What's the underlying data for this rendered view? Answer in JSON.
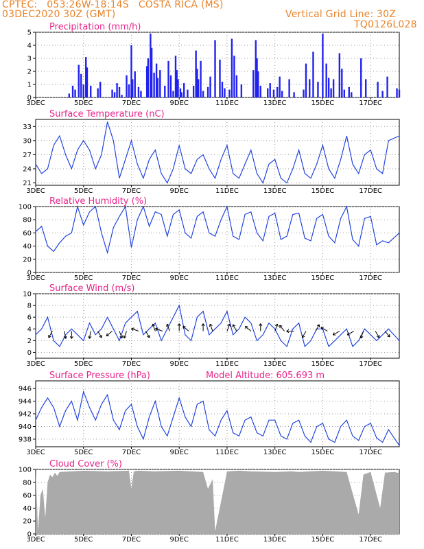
{
  "header": {
    "line1": "CPTEC:   053:26W-18:14S   COSTA RICA (MS)",
    "line2": "03DEC2020 30Z (GMT)",
    "grid_note": "Vertical Grid Line: 30Z",
    "run_code": "TQ0126L028"
  },
  "x_axis": {
    "tick_labels": [
      "3DEC",
      "5DEC",
      "7DEC",
      "9DEC",
      "11DEC",
      "13DEC",
      "15DEC",
      "17DEC"
    ],
    "tick_days": [
      0,
      2,
      4,
      6,
      8,
      10,
      12,
      14
    ]
  },
  "chart_data": [
    {
      "type": "bar",
      "title": "Precipitation (mm/h)",
      "ylim": [
        0,
        5
      ],
      "yticks": [
        0,
        1,
        2,
        3,
        4,
        5
      ],
      "color": "#2222ee",
      "x_days": [
        1.4,
        1.55,
        1.65,
        1.8,
        1.9,
        2.0,
        2.1,
        2.15,
        2.3,
        2.6,
        2.7,
        3.2,
        3.3,
        3.4,
        3.5,
        3.6,
        3.8,
        3.9,
        4.0,
        4.05,
        4.15,
        4.3,
        4.4,
        4.65,
        4.7,
        4.8,
        4.85,
        4.95,
        5.05,
        5.1,
        5.2,
        5.4,
        5.55,
        5.65,
        5.75,
        5.85,
        5.9,
        5.95,
        6.05,
        6.1,
        6.2,
        6.35,
        6.6,
        6.7,
        6.75,
        6.8,
        6.9,
        7.0,
        7.2,
        7.3,
        7.5,
        7.7,
        7.8,
        7.9,
        8.1,
        8.2,
        8.3,
        8.4,
        8.6,
        9.1,
        9.2,
        9.25,
        9.3,
        9.4,
        9.7,
        9.8,
        9.95,
        10.1,
        10.2,
        10.3,
        10.6,
        10.8,
        11.2,
        11.3,
        11.45,
        11.6,
        11.8,
        12.0,
        12.15,
        12.25,
        12.35,
        12.45,
        12.7,
        12.8,
        12.9,
        13.1,
        13.2,
        13.6,
        13.8,
        14.3,
        14.5,
        14.7,
        15.1,
        15.2
      ],
      "values": [
        0.3,
        0.9,
        0.6,
        2.5,
        1.8,
        1.0,
        3.1,
        2.3,
        0.9,
        0.7,
        1.2,
        0.6,
        0.4,
        1.1,
        0.8,
        0.2,
        1.7,
        1.0,
        4.0,
        1.4,
        2.0,
        0.8,
        0.5,
        2.4,
        3.0,
        4.9,
        3.8,
        1.9,
        2.6,
        1.5,
        2.1,
        0.9,
        2.8,
        1.7,
        0.5,
        3.2,
        2.1,
        1.4,
        0.7,
        0.4,
        1.1,
        0.6,
        0.9,
        3.6,
        2.2,
        1.4,
        2.8,
        0.5,
        0.8,
        1.6,
        4.4,
        2.9,
        1.2,
        0.7,
        0.6,
        4.5,
        3.2,
        1.7,
        1.0,
        2.1,
        4.4,
        3.0,
        2.0,
        0.9,
        0.7,
        1.1,
        0.6,
        0.8,
        1.6,
        0.5,
        1.4,
        0.4,
        0.6,
        2.6,
        1.4,
        3.5,
        1.2,
        4.9,
        2.6,
        1.5,
        0.7,
        1.4,
        3.4,
        2.2,
        0.6,
        0.8,
        0.4,
        3.0,
        1.4,
        1.2,
        0.5,
        1.6,
        0.7,
        0.6
      ]
    },
    {
      "type": "line",
      "title": "Surface Temperature (nC)",
      "ylim": [
        20.5,
        34.5
      ],
      "yticks": [
        21,
        24,
        27,
        30,
        33
      ],
      "color": "#2244dd",
      "x_days": [
        0,
        0.25,
        0.5,
        0.75,
        1,
        1.25,
        1.5,
        1.75,
        2,
        2.25,
        2.5,
        2.75,
        3,
        3.25,
        3.5,
        3.75,
        4,
        4.25,
        4.5,
        4.75,
        5,
        5.25,
        5.5,
        5.75,
        6,
        6.25,
        6.5,
        6.75,
        7,
        7.25,
        7.5,
        7.75,
        8,
        8.25,
        8.5,
        8.75,
        9,
        9.25,
        9.5,
        9.75,
        10,
        10.25,
        10.5,
        10.75,
        11,
        11.25,
        11.5,
        11.75,
        12,
        12.25,
        12.5,
        12.75,
        13,
        13.25,
        13.5,
        13.75,
        14,
        14.25,
        14.5,
        14.75,
        15.2
      ],
      "values": [
        25,
        23,
        24,
        29,
        31,
        27,
        24,
        28,
        30,
        28,
        24,
        27,
        34,
        30,
        22,
        26,
        30,
        25,
        22,
        26,
        28,
        23,
        21,
        24,
        29,
        24,
        23,
        26,
        27,
        24,
        22,
        26,
        29,
        23,
        22,
        25,
        28,
        23,
        21,
        25,
        26,
        22,
        21,
        24,
        28,
        23,
        22,
        25,
        29,
        24,
        22,
        26,
        31,
        25,
        23,
        27,
        28,
        24,
        23,
        30,
        31
      ]
    },
    {
      "type": "line",
      "title": "Relative Humidity (%)",
      "ylim": [
        0,
        100
      ],
      "yticks": [
        0,
        20,
        40,
        60,
        80,
        100
      ],
      "color": "#2244dd",
      "x_days": [
        0,
        0.25,
        0.5,
        0.75,
        1,
        1.25,
        1.5,
        1.75,
        2,
        2.25,
        2.5,
        2.75,
        3,
        3.25,
        3.5,
        3.75,
        4,
        4.25,
        4.5,
        4.75,
        5,
        5.25,
        5.5,
        5.75,
        6,
        6.25,
        6.5,
        6.75,
        7,
        7.25,
        7.5,
        7.75,
        8,
        8.25,
        8.5,
        8.75,
        9,
        9.25,
        9.5,
        9.75,
        10,
        10.25,
        10.5,
        10.75,
        11,
        11.25,
        11.5,
        11.75,
        12,
        12.25,
        12.5,
        12.75,
        13,
        13.25,
        13.5,
        13.75,
        14,
        14.25,
        14.5,
        14.75,
        15.2
      ],
      "values": [
        62,
        70,
        40,
        32,
        45,
        55,
        60,
        100,
        72,
        92,
        100,
        60,
        30,
        68,
        85,
        100,
        38,
        80,
        100,
        70,
        92,
        88,
        55,
        88,
        95,
        60,
        52,
        85,
        92,
        60,
        55,
        80,
        100,
        55,
        50,
        88,
        92,
        60,
        48,
        85,
        90,
        50,
        55,
        88,
        90,
        52,
        48,
        82,
        88,
        55,
        45,
        82,
        100,
        50,
        40,
        82,
        85,
        42,
        48,
        45,
        60
      ]
    },
    {
      "type": "line",
      "title": "Surface Wind (m/s)",
      "ylim": [
        -1,
        10
      ],
      "yticks": [
        0,
        2,
        4,
        6,
        8,
        10
      ],
      "color": "#2244dd",
      "x_days": [
        0,
        0.25,
        0.5,
        0.75,
        1,
        1.25,
        1.5,
        1.75,
        2,
        2.25,
        2.5,
        2.75,
        3,
        3.25,
        3.5,
        3.75,
        4,
        4.25,
        4.5,
        4.75,
        5,
        5.25,
        5.5,
        5.75,
        6,
        6.25,
        6.5,
        6.75,
        7,
        7.25,
        7.5,
        7.75,
        8,
        8.25,
        8.5,
        8.75,
        9,
        9.25,
        9.5,
        9.75,
        10,
        10.25,
        10.5,
        10.75,
        11,
        11.25,
        11.5,
        11.75,
        12,
        12.25,
        12.5,
        12.75,
        13,
        13.25,
        13.5,
        13.75,
        14,
        14.25,
        14.5,
        14.75,
        15.2
      ],
      "values": [
        3,
        4,
        6,
        2,
        1,
        3,
        4,
        3,
        2,
        5,
        3,
        4,
        6,
        4,
        2,
        5,
        6,
        7,
        3,
        4,
        5,
        2,
        4,
        6,
        8,
        3,
        2,
        6,
        7,
        3,
        4,
        5,
        7,
        3,
        4,
        6,
        5,
        2,
        3,
        5,
        4,
        2,
        1,
        4,
        5,
        1,
        2,
        4,
        4,
        1,
        2,
        3,
        4,
        1,
        2,
        4,
        3,
        2,
        3,
        4,
        2
      ],
      "arrows_at_days": [
        0.7,
        1.2,
        1.5,
        2.3,
        2.6,
        3.2,
        3.5,
        3.8,
        4.3,
        4.6,
        5.0,
        5.3,
        5.6,
        6.0,
        6.4,
        7.0,
        7.4,
        8.0,
        8.4,
        9.0,
        9.4,
        10.0,
        10.4,
        10.8,
        11.3,
        11.7,
        12.2,
        12.7,
        13.3,
        13.7,
        14.2,
        14.6
      ],
      "arrow_dirs_deg": [
        120,
        80,
        90,
        100,
        60,
        140,
        70,
        110,
        200,
        60,
        250,
        200,
        250,
        270,
        220,
        270,
        250,
        290,
        240,
        220,
        270,
        290,
        230,
        180,
        120,
        300,
        210,
        150,
        150,
        110,
        60,
        50
      ]
    },
    {
      "type": "line",
      "title": "Surface Pressure (hPa)",
      "subtitle": "Model Altitude: 605.693 m",
      "ylim": [
        936.8,
        947.2
      ],
      "yticks": [
        938,
        940,
        942,
        944,
        946
      ],
      "color": "#2244dd",
      "x_days": [
        0,
        0.25,
        0.5,
        0.75,
        1,
        1.25,
        1.5,
        1.75,
        2,
        2.25,
        2.5,
        2.75,
        3,
        3.25,
        3.5,
        3.75,
        4,
        4.25,
        4.5,
        4.75,
        5,
        5.25,
        5.5,
        5.75,
        6,
        6.25,
        6.5,
        6.75,
        7,
        7.25,
        7.5,
        7.75,
        8,
        8.25,
        8.5,
        8.75,
        9,
        9.25,
        9.5,
        9.75,
        10,
        10.25,
        10.5,
        10.75,
        11,
        11.25,
        11.5,
        11.75,
        12,
        12.25,
        12.5,
        12.75,
        13,
        13.25,
        13.5,
        13.75,
        14,
        14.25,
        14.5,
        14.75,
        15.2
      ],
      "values": [
        941,
        943,
        944.5,
        943,
        940,
        942.5,
        944,
        941,
        945.5,
        943,
        941,
        943.5,
        945,
        941,
        939.5,
        942.5,
        943.5,
        940,
        938,
        941.5,
        944,
        940,
        938.5,
        941.5,
        944.5,
        941.5,
        940,
        943.5,
        944,
        939.5,
        938.5,
        941,
        942.5,
        939,
        938.5,
        941,
        941.5,
        939,
        938.5,
        941,
        941,
        938.5,
        938,
        940.5,
        941,
        938.5,
        937.5,
        940,
        940.5,
        938,
        937.5,
        940,
        941,
        938.5,
        937.8,
        940,
        940.5,
        938.2,
        937.5,
        939.5,
        937
      ]
    },
    {
      "type": "area",
      "title": "Cloud Cover (%)",
      "ylim": [
        0,
        100
      ],
      "yticks": [
        0,
        20,
        40,
        60,
        80,
        100
      ],
      "color": "#aaaaaa",
      "x_days": [
        0,
        0.1,
        0.2,
        0.3,
        0.4,
        0.5,
        0.6,
        0.7,
        0.8,
        0.9,
        1,
        2,
        3,
        3.9,
        4.0,
        4.1,
        4.3,
        5,
        6,
        6.5,
        7,
        7.2,
        7.4,
        7.5,
        8,
        8.5,
        9,
        10,
        10.7,
        11,
        12,
        13,
        13.5,
        13.7,
        14,
        14.4,
        14.6,
        15,
        15.2
      ],
      "values": [
        98,
        5,
        60,
        70,
        25,
        80,
        92,
        88,
        95,
        90,
        96,
        98,
        97,
        98,
        70,
        97,
        98,
        97,
        98,
        97,
        96,
        70,
        85,
        4,
        97,
        98,
        97,
        96,
        97,
        96,
        98,
        96,
        30,
        92,
        96,
        40,
        95,
        96,
        94
      ]
    }
  ]
}
